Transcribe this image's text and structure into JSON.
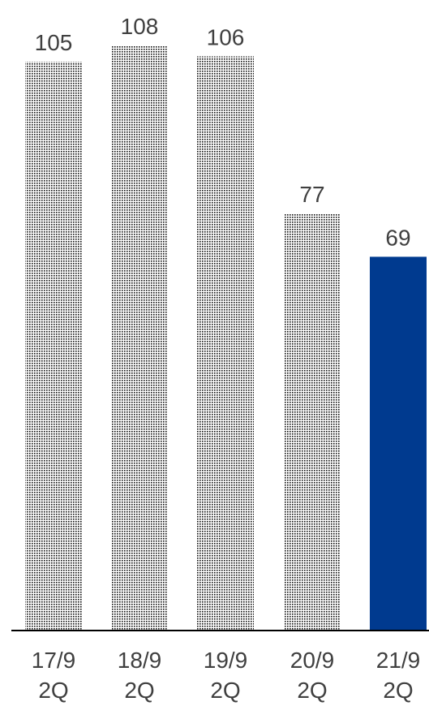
{
  "chart_data": {
    "type": "bar",
    "categories": [
      [
        "17/9",
        "2Q"
      ],
      [
        "18/9",
        "2Q"
      ],
      [
        "19/9",
        "2Q"
      ],
      [
        "20/9",
        "2Q"
      ],
      [
        "21/9",
        "2Q"
      ]
    ],
    "values": [
      105,
      108,
      106,
      77,
      69
    ],
    "data_labels": [
      "105",
      "108",
      "106",
      "77",
      "69"
    ],
    "bar_styles": [
      "dotted",
      "dotted",
      "dotted",
      "dotted",
      "solid"
    ],
    "colors": {
      "dotted_fill": "#111111",
      "highlight_fill": "#003a8f",
      "axis": "#000000",
      "text": "#404040"
    },
    "title": "",
    "xlabel": "",
    "ylabel": "",
    "ylim": [
      0,
      115
    ],
    "grid": false,
    "legend": "none"
  }
}
